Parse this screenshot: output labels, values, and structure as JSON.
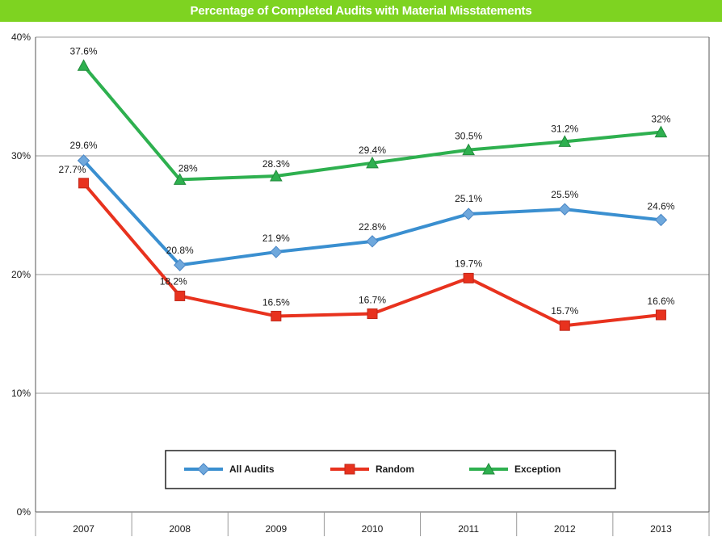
{
  "chart_data": {
    "type": "line",
    "title": "Percentage of Completed Audits with Material Misstatements",
    "xlabel": "",
    "ylabel": "",
    "categories": [
      "2007",
      "2008",
      "2009",
      "2010",
      "2011",
      "2012",
      "2013"
    ],
    "y_ticks": [
      "0%",
      "10%",
      "20%",
      "30%",
      "40%"
    ],
    "ylim": [
      0,
      40
    ],
    "grid": true,
    "legend_position": "bottom-center",
    "series": [
      {
        "name": "All Audits",
        "color": "#3a8fd0",
        "marker": "diamond",
        "values": [
          29.6,
          20.8,
          21.9,
          22.8,
          25.1,
          25.5,
          24.6
        ],
        "labels": [
          "29.6%",
          "20.8%",
          "21.9%",
          "22.8%",
          "25.1%",
          "25.5%",
          "24.6%"
        ]
      },
      {
        "name": "Random",
        "color": "#e8321e",
        "marker": "square",
        "values": [
          27.7,
          18.2,
          16.5,
          16.7,
          19.7,
          15.7,
          16.6
        ],
        "labels": [
          "27.7%",
          "18.2%",
          "16.5%",
          "16.7%",
          "19.7%",
          "15.7%",
          "16.6%"
        ]
      },
      {
        "name": "Exception",
        "color": "#2eb04f",
        "marker": "triangle",
        "values": [
          37.6,
          28.0,
          28.3,
          29.4,
          30.5,
          31.2,
          32.0
        ],
        "labels": [
          "37.6%",
          "28%",
          "28.3%",
          "29.4%",
          "30.5%",
          "31.2%",
          "32%"
        ]
      }
    ]
  }
}
